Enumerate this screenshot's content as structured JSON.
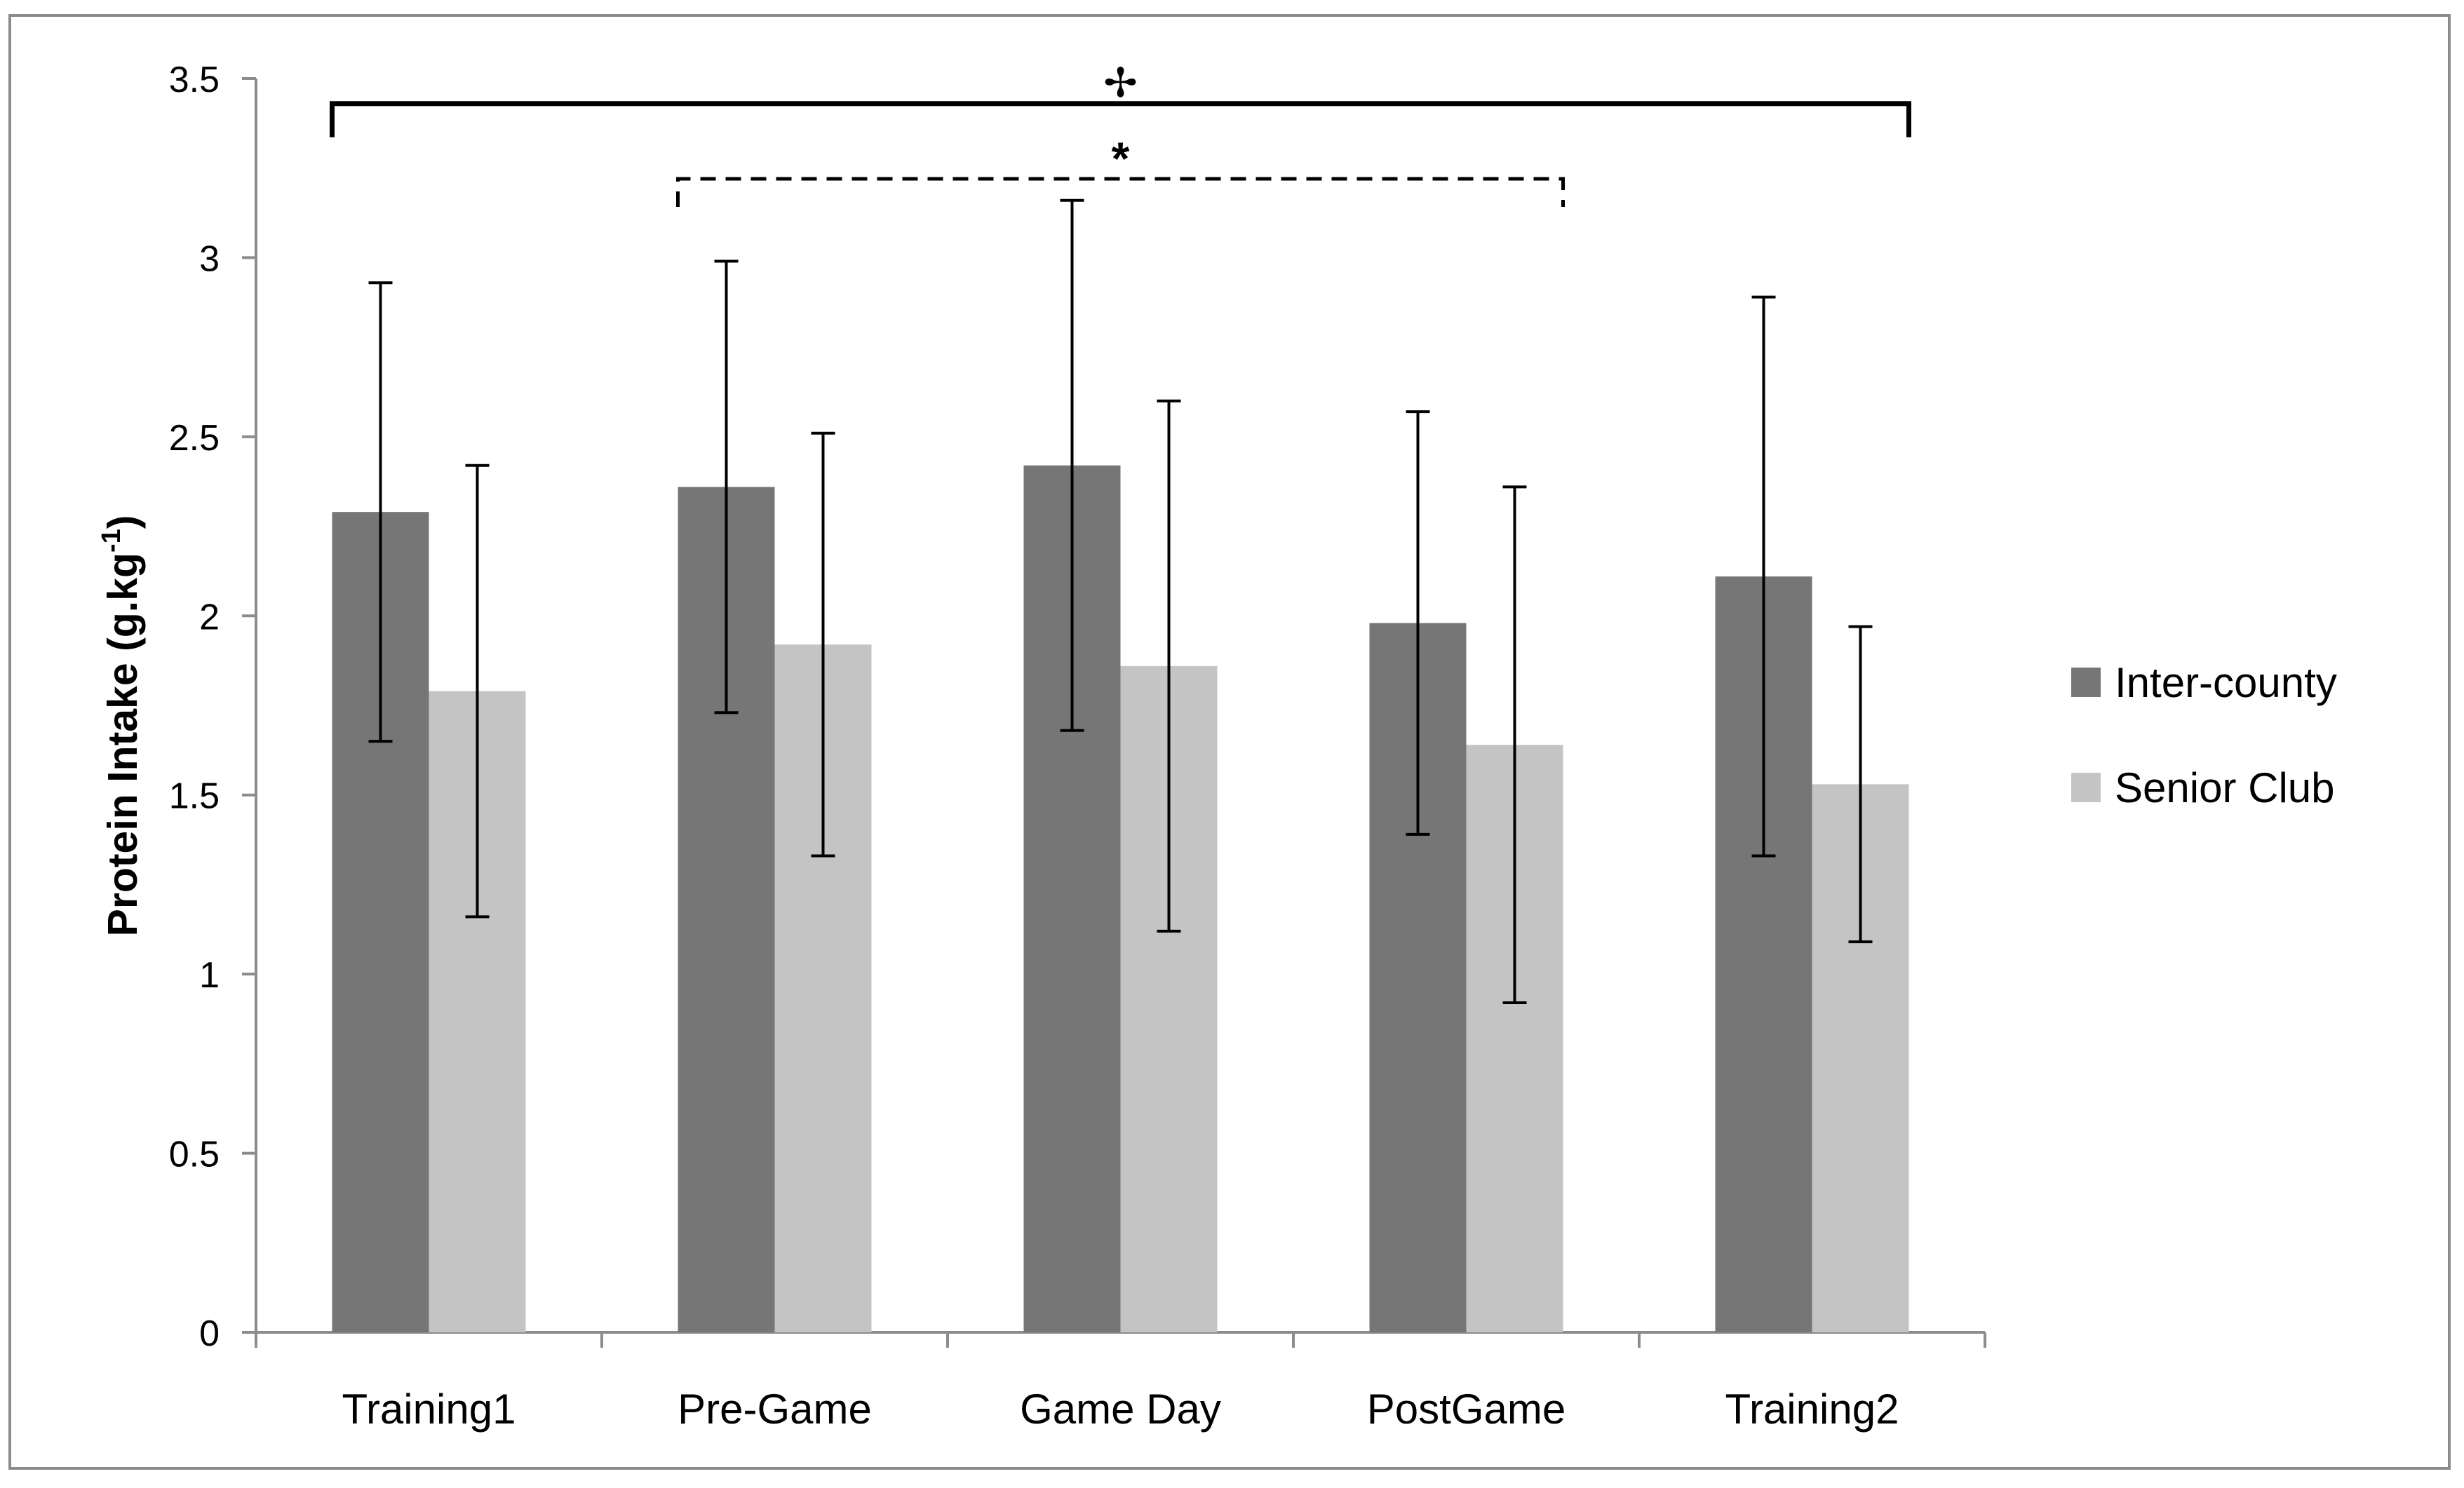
{
  "chart_data": {
    "type": "bar",
    "title": "",
    "xlabel": "",
    "ylabel": "Protein Intake (g.kg",
    "ylabel_superscript": "-1",
    "ylabel_suffix": ")",
    "ylim": [
      0,
      3.5
    ],
    "yticks": [
      0,
      0.5,
      1,
      1.5,
      2,
      2.5,
      3,
      3.5
    ],
    "ytick_labels": [
      "0",
      "0.5",
      "1",
      "1.5",
      "2",
      "2.5",
      "3",
      "3.5"
    ],
    "categories": [
      "Training1",
      "Pre-Game",
      "Game Day",
      "PostGame",
      "Training2"
    ],
    "series": [
      {
        "name": "Inter-county",
        "color": "#767676",
        "values": [
          2.29,
          2.36,
          2.42,
          1.98,
          2.11
        ],
        "error": [
          0.64,
          0.63,
          0.74,
          0.59,
          0.78
        ]
      },
      {
        "name": "Senior Club",
        "color": "#c4c4c4",
        "values": [
          1.79,
          1.92,
          1.86,
          1.64,
          1.53
        ],
        "error": [
          0.63,
          0.59,
          0.74,
          0.72,
          0.44
        ]
      }
    ],
    "legend_position": "right",
    "grid": false,
    "annotations": [
      {
        "name": "significance-bracket-solid",
        "symbol": "✢",
        "from_category": 0,
        "to_category": 4,
        "y": 3.43,
        "style": "solid"
      },
      {
        "name": "significance-bracket-dashed",
        "symbol": "*",
        "from_category": 1,
        "to_category": 3,
        "y": 3.22,
        "style": "dashed"
      }
    ]
  }
}
